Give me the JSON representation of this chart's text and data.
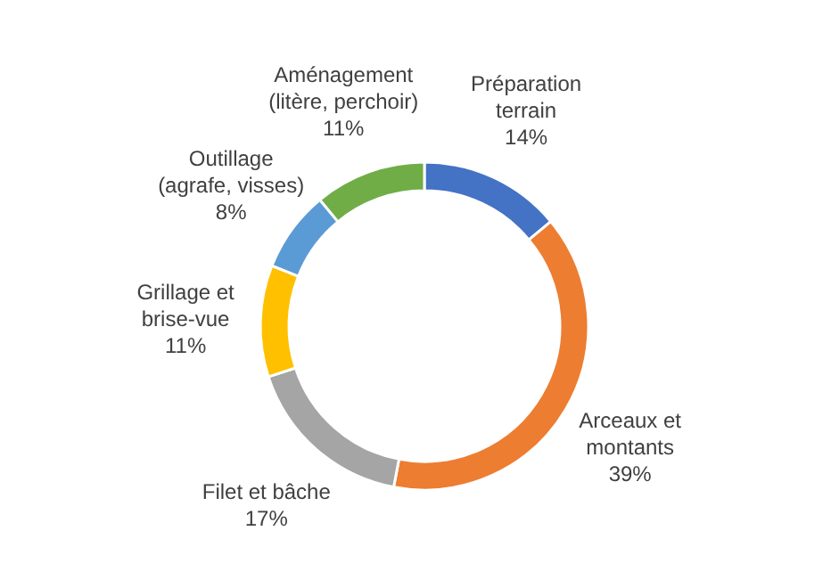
{
  "chart_data": {
    "type": "donut",
    "categories": [
      "Préparation terrain",
      "Arceaux et montants",
      "Filet et bâche",
      "Grillage et brise-vue",
      "Outillage (agrafe, visses)",
      "Aménagement (litère, perchoir)"
    ],
    "values": [
      14,
      39,
      17,
      11,
      8,
      11
    ],
    "value_labels": [
      "14%",
      "39%",
      "17%",
      "11%",
      "8%",
      "11%"
    ],
    "colors": [
      "#4472c4",
      "#ed7d31",
      "#a5a5a5",
      "#ffc000",
      "#5b9bd5",
      "#70ad47"
    ]
  }
}
